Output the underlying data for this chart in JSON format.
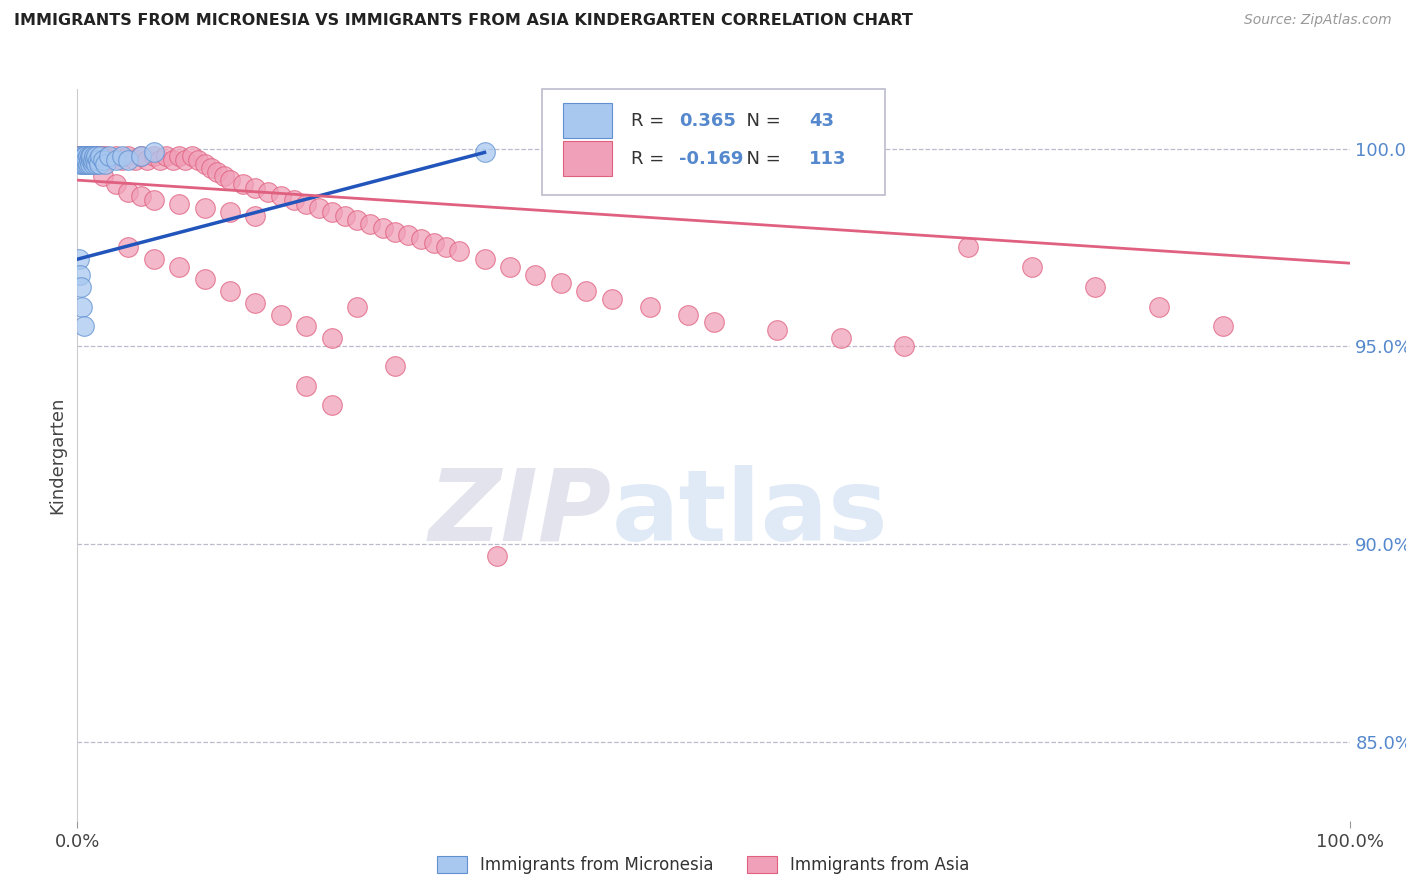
{
  "title": "IMMIGRANTS FROM MICRONESIA VS IMMIGRANTS FROM ASIA KINDERGARTEN CORRELATION CHART",
  "source": "Source: ZipAtlas.com",
  "ylabel": "Kindergarten",
  "yticklabels_right": [
    "100.0%",
    "95.0%",
    "90.0%",
    "85.0%"
  ],
  "yticklabels_right_vals": [
    1.0,
    0.95,
    0.9,
    0.85
  ],
  "xlim": [
    0.0,
    1.0
  ],
  "ylim": [
    0.83,
    1.015
  ],
  "blue_R": 0.365,
  "blue_N": 43,
  "pink_R": -0.169,
  "pink_N": 113,
  "blue_color": "#a8c8f0",
  "pink_color": "#f0a0b8",
  "blue_edge_color": "#6090d0",
  "pink_edge_color": "#e06080",
  "blue_line_color": "#2255bb",
  "pink_line_color": "#e06080",
  "legend_label_blue": "Immigrants from Micronesia",
  "legend_label_pink": "Immigrants from Asia",
  "watermark_zip": "ZIP",
  "watermark_atlas": "atlas",
  "background_color": "#ffffff",
  "grid_color": "#bbbbcc",
  "axis_color": "#444444",
  "right_tick_color": "#5588cc",
  "blue_scatter_x": [
    0.001,
    0.002,
    0.002,
    0.003,
    0.003,
    0.004,
    0.004,
    0.005,
    0.005,
    0.006,
    0.006,
    0.007,
    0.007,
    0.008,
    0.008,
    0.009,
    0.01,
    0.01,
    0.011,
    0.011,
    0.012,
    0.012,
    0.013,
    0.014,
    0.015,
    0.015,
    0.016,
    0.017,
    0.018,
    0.02,
    0.022,
    0.025,
    0.03,
    0.035,
    0.04,
    0.001,
    0.002,
    0.003,
    0.004,
    0.005,
    0.05,
    0.06,
    0.32
  ],
  "blue_scatter_y": [
    0.997,
    0.998,
    0.996,
    0.997,
    0.998,
    0.996,
    0.997,
    0.998,
    0.996,
    0.997,
    0.998,
    0.996,
    0.997,
    0.998,
    0.996,
    0.997,
    0.998,
    0.996,
    0.997,
    0.998,
    0.996,
    0.997,
    0.998,
    0.997,
    0.996,
    0.998,
    0.997,
    0.996,
    0.998,
    0.997,
    0.996,
    0.998,
    0.997,
    0.998,
    0.997,
    0.972,
    0.968,
    0.965,
    0.96,
    0.955,
    0.998,
    0.999,
    0.999
  ],
  "pink_scatter_x": [
    0.001,
    0.001,
    0.002,
    0.002,
    0.003,
    0.003,
    0.004,
    0.004,
    0.005,
    0.005,
    0.006,
    0.006,
    0.007,
    0.007,
    0.008,
    0.008,
    0.009,
    0.009,
    0.01,
    0.01,
    0.011,
    0.011,
    0.012,
    0.012,
    0.013,
    0.013,
    0.014,
    0.015,
    0.015,
    0.016,
    0.017,
    0.018,
    0.019,
    0.02,
    0.022,
    0.025,
    0.03,
    0.035,
    0.04,
    0.045,
    0.05,
    0.055,
    0.06,
    0.065,
    0.07,
    0.075,
    0.08,
    0.085,
    0.09,
    0.095,
    0.1,
    0.105,
    0.11,
    0.115,
    0.12,
    0.13,
    0.14,
    0.15,
    0.16,
    0.17,
    0.18,
    0.19,
    0.2,
    0.21,
    0.22,
    0.23,
    0.24,
    0.25,
    0.26,
    0.27,
    0.28,
    0.29,
    0.3,
    0.32,
    0.34,
    0.36,
    0.38,
    0.4,
    0.42,
    0.45,
    0.48,
    0.5,
    0.55,
    0.6,
    0.65,
    0.7,
    0.75,
    0.8,
    0.85,
    0.9,
    0.04,
    0.06,
    0.08,
    0.1,
    0.12,
    0.14,
    0.16,
    0.18,
    0.2,
    0.25,
    0.18,
    0.2,
    0.22,
    0.02,
    0.03,
    0.04,
    0.05,
    0.06,
    0.08,
    0.1,
    0.12,
    0.14,
    0.33
  ],
  "pink_scatter_y": [
    0.997,
    0.998,
    0.997,
    0.998,
    0.997,
    0.998,
    0.997,
    0.998,
    0.997,
    0.998,
    0.997,
    0.998,
    0.997,
    0.998,
    0.997,
    0.998,
    0.997,
    0.998,
    0.997,
    0.998,
    0.997,
    0.998,
    0.997,
    0.998,
    0.997,
    0.998,
    0.997,
    0.997,
    0.998,
    0.997,
    0.998,
    0.997,
    0.998,
    0.997,
    0.998,
    0.997,
    0.998,
    0.997,
    0.998,
    0.997,
    0.998,
    0.997,
    0.998,
    0.997,
    0.998,
    0.997,
    0.998,
    0.997,
    0.998,
    0.997,
    0.996,
    0.995,
    0.994,
    0.993,
    0.992,
    0.991,
    0.99,
    0.989,
    0.988,
    0.987,
    0.986,
    0.985,
    0.984,
    0.983,
    0.982,
    0.981,
    0.98,
    0.979,
    0.978,
    0.977,
    0.976,
    0.975,
    0.974,
    0.972,
    0.97,
    0.968,
    0.966,
    0.964,
    0.962,
    0.96,
    0.958,
    0.956,
    0.954,
    0.952,
    0.95,
    0.975,
    0.97,
    0.965,
    0.96,
    0.955,
    0.975,
    0.972,
    0.97,
    0.967,
    0.964,
    0.961,
    0.958,
    0.955,
    0.952,
    0.945,
    0.94,
    0.935,
    0.96,
    0.993,
    0.991,
    0.989,
    0.988,
    0.987,
    0.986,
    0.985,
    0.984,
    0.983,
    0.897
  ],
  "pink_line_x": [
    0.0,
    1.0
  ],
  "pink_line_y": [
    0.992,
    0.971
  ],
  "blue_line_x": [
    0.0,
    0.32
  ],
  "blue_line_y": [
    0.972,
    0.999
  ]
}
